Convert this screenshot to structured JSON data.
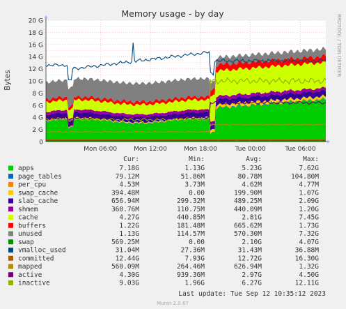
{
  "chart_data": {
    "type": "area",
    "title": "Memory usage - by day",
    "ylabel": "Bytes",
    "side_label": "RRDTOOL / TOBI OETIKER",
    "ylim": [
      0,
      20
    ],
    "y_unit": "G",
    "y_ticks": [
      "0",
      "2 G",
      "4 G",
      "6 G",
      "8 G",
      "10 G",
      "12 G",
      "14 G",
      "16 G",
      "18 G",
      "20 G"
    ],
    "x_ticks": [
      "Mon 06:00",
      "Mon 12:00",
      "Mon 18:00",
      "Tue 00:00",
      "Tue 06:00"
    ],
    "grid": true,
    "legend_headers": [
      "Cur:",
      "Min:",
      "Avg:",
      "Max:"
    ],
    "series": [
      {
        "name": "apps",
        "color": "#00cc00",
        "cur": "7.18G",
        "min": "1.13G",
        "avg": "5.23G",
        "max": "7.62G"
      },
      {
        "name": "page_tables",
        "color": "#0066b3",
        "cur": "79.12M",
        "min": "51.86M",
        "avg": "80.78M",
        "max": "104.80M"
      },
      {
        "name": "per_cpu",
        "color": "#ff8000",
        "cur": "4.53M",
        "min": "3.73M",
        "avg": "4.62M",
        "max": "4.77M"
      },
      {
        "name": "swap_cache",
        "color": "#ffcc00",
        "cur": "394.48M",
        "min": "0.00",
        "avg": "199.90M",
        "max": "1.07G"
      },
      {
        "name": "slab_cache",
        "color": "#330099",
        "cur": "656.94M",
        "min": "299.32M",
        "avg": "489.25M",
        "max": "2.09G"
      },
      {
        "name": "shmem",
        "color": "#990099",
        "cur": "360.76M",
        "min": "110.75M",
        "avg": "440.09M",
        "max": "1.20G"
      },
      {
        "name": "cache",
        "color": "#ccff00",
        "cur": "4.27G",
        "min": "440.85M",
        "avg": "2.81G",
        "max": "7.45G"
      },
      {
        "name": "buffers",
        "color": "#ff0000",
        "cur": "1.22G",
        "min": "181.48M",
        "avg": "665.62M",
        "max": "1.73G"
      },
      {
        "name": "unused",
        "color": "#808080",
        "cur": "1.13G",
        "min": "114.57M",
        "avg": "570.30M",
        "max": "7.32G"
      },
      {
        "name": "swap",
        "color": "#008f00",
        "cur": "569.25M",
        "min": "0.00",
        "avg": "2.10G",
        "max": "4.07G"
      },
      {
        "name": "vmalloc_used",
        "color": "#00487d",
        "cur": "31.04M",
        "min": "27.36M",
        "avg": "31.43M",
        "max": "36.88M"
      },
      {
        "name": "committed",
        "color": "#b35a00",
        "cur": "12.44G",
        "min": "7.93G",
        "avg": "12.72G",
        "max": "16.30G"
      },
      {
        "name": "mapped",
        "color": "#b38f00",
        "cur": "560.09M",
        "min": "264.46M",
        "avg": "626.94M",
        "max": "1.32G"
      },
      {
        "name": "active",
        "color": "#6b006b",
        "cur": "4.30G",
        "min": "939.36M",
        "avg": "2.97G",
        "max": "4.50G"
      },
      {
        "name": "inactive",
        "color": "#8fb300",
        "cur": "9.03G",
        "min": "1.96G",
        "avg": "6.27G",
        "max": "12.11G"
      }
    ],
    "last_update": "Last update: Tue Sep 12 10:35:12 2023",
    "footer": "Munin 2.0.67"
  }
}
